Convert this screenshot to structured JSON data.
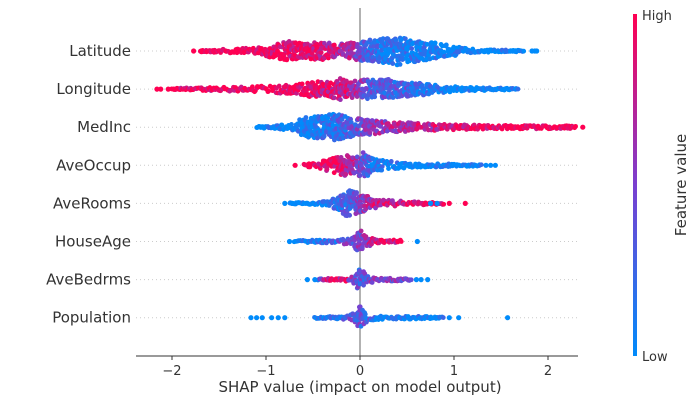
{
  "chart_data": {
    "type": "scatter",
    "subtype": "beeswarm",
    "title": "",
    "xlabel": "SHAP value (impact on model output)",
    "ylabel": "",
    "xlim": [
      -2.4,
      2.3
    ],
    "xticks": [
      -2,
      -1,
      0,
      1,
      2
    ],
    "xtick_labels": [
      "−2",
      "−1",
      "0",
      "1",
      "2"
    ],
    "grid": false,
    "colorbar": {
      "label": "Feature value",
      "high_label": "High",
      "low_label": "Low",
      "high_color": "#ff0052",
      "low_color": "#008bfb",
      "mid_color": "#7a3fd0"
    },
    "note": "profile knots are [shap value, relative density 0-1, mean feature value 0(low)-1(high)]; outliers are [shap value, feature value]",
    "features": [
      {
        "name": "Latitude",
        "profile": [
          [
            -1.7,
            0.06,
            1
          ],
          [
            -1.55,
            0.1,
            1
          ],
          [
            -1.2,
            0.2,
            1
          ],
          [
            -0.95,
            0.45,
            0.98
          ],
          [
            -0.75,
            0.7,
            0.95
          ],
          [
            -0.58,
            0.5,
            0.9
          ],
          [
            -0.4,
            0.7,
            0.85
          ],
          [
            -0.25,
            0.45,
            0.8
          ],
          [
            -0.1,
            0.6,
            0.7
          ],
          [
            0.05,
            0.75,
            0.3
          ],
          [
            0.2,
            0.85,
            0.15
          ],
          [
            0.4,
            1.0,
            0.08
          ],
          [
            0.55,
            0.8,
            0.08
          ],
          [
            0.8,
            0.6,
            0.05
          ],
          [
            1.0,
            0.35,
            0.03
          ],
          [
            1.2,
            0.14,
            0
          ],
          [
            1.5,
            0.08,
            0
          ],
          [
            1.75,
            0.05,
            0
          ]
        ],
        "outliers": [
          [
            -1.77,
            1
          ],
          [
            -1.69,
            1
          ],
          [
            1.83,
            0
          ],
          [
            1.86,
            0
          ],
          [
            1.88,
            0
          ]
        ]
      },
      {
        "name": "Longitude",
        "profile": [
          [
            -2.0,
            0.06,
            1
          ],
          [
            -1.6,
            0.12,
            1
          ],
          [
            -1.1,
            0.2,
            1
          ],
          [
            -0.7,
            0.35,
            0.95
          ],
          [
            -0.5,
            0.6,
            0.9
          ],
          [
            -0.35,
            0.5,
            0.85
          ],
          [
            -0.22,
            0.8,
            0.8
          ],
          [
            -0.05,
            0.6,
            0.7
          ],
          [
            0.1,
            0.7,
            0.35
          ],
          [
            0.3,
            0.7,
            0.3
          ],
          [
            0.45,
            0.55,
            0.3
          ],
          [
            0.6,
            0.5,
            0.2
          ],
          [
            0.8,
            0.3,
            0.05
          ],
          [
            1.1,
            0.15,
            0
          ],
          [
            1.4,
            0.1,
            0
          ],
          [
            1.68,
            0.05,
            0
          ]
        ],
        "outliers": [
          [
            -2.16,
            1
          ],
          [
            -2.12,
            1
          ],
          [
            -2.04,
            1
          ],
          [
            -1.98,
            1
          ]
        ]
      },
      {
        "name": "MedInc",
        "profile": [
          [
            -1.1,
            0.06,
            0
          ],
          [
            -0.9,
            0.1,
            0
          ],
          [
            -0.7,
            0.3,
            0.02
          ],
          [
            -0.6,
            0.7,
            0.05
          ],
          [
            -0.4,
            0.8,
            0.1
          ],
          [
            -0.25,
            1.0,
            0.2
          ],
          [
            -0.1,
            0.7,
            0.35
          ],
          [
            0.05,
            0.55,
            0.5
          ],
          [
            0.3,
            0.4,
            0.65
          ],
          [
            0.6,
            0.3,
            0.75
          ],
          [
            0.9,
            0.2,
            0.85
          ],
          [
            1.3,
            0.15,
            0.95
          ],
          [
            1.8,
            0.12,
            1
          ],
          [
            2.3,
            0.1,
            1
          ]
        ],
        "outliers": [
          [
            2.37,
            1
          ]
        ]
      },
      {
        "name": "AveOccup",
        "profile": [
          [
            -0.6,
            0.08,
            1
          ],
          [
            -0.45,
            0.2,
            1
          ],
          [
            -0.3,
            0.5,
            0.95
          ],
          [
            -0.17,
            0.75,
            0.85
          ],
          [
            -0.05,
            0.6,
            0.6
          ],
          [
            0.02,
            1.0,
            0.4
          ],
          [
            0.15,
            0.45,
            0.1
          ],
          [
            0.3,
            0.3,
            0.05
          ],
          [
            0.6,
            0.15,
            0
          ],
          [
            1.0,
            0.1,
            0
          ],
          [
            1.3,
            0.06,
            0
          ]
        ],
        "outliers": [
          [
            -0.69,
            1
          ],
          [
            1.34,
            0
          ],
          [
            1.39,
            0
          ],
          [
            1.44,
            0
          ]
        ]
      },
      {
        "name": "AveRooms",
        "profile": [
          [
            -0.75,
            0.06,
            0
          ],
          [
            -0.55,
            0.08,
            0
          ],
          [
            -0.35,
            0.15,
            0.05
          ],
          [
            -0.22,
            0.6,
            0.2
          ],
          [
            -0.12,
            1.0,
            0.35
          ],
          [
            0.0,
            0.7,
            0.5
          ],
          [
            0.15,
            0.35,
            0.75
          ],
          [
            0.35,
            0.2,
            0.85
          ],
          [
            0.6,
            0.12,
            0.9
          ],
          [
            0.9,
            0.08,
            0.9
          ]
        ],
        "outliers": [
          [
            -0.8,
            0
          ],
          [
            -0.72,
            0
          ],
          [
            0.75,
            0
          ],
          [
            0.82,
            0
          ],
          [
            0.95,
            1
          ],
          [
            1.12,
            1
          ]
        ]
      },
      {
        "name": "HouseAge",
        "profile": [
          [
            -0.7,
            0.06,
            0
          ],
          [
            -0.5,
            0.1,
            0.1
          ],
          [
            -0.25,
            0.1,
            0.25
          ],
          [
            -0.08,
            0.3,
            0.5
          ],
          [
            0.0,
            0.85,
            0.5
          ],
          [
            0.06,
            0.4,
            0.6
          ],
          [
            0.2,
            0.15,
            0.85
          ],
          [
            0.45,
            0.1,
            0.9
          ]
        ],
        "outliers": [
          [
            -0.75,
            0
          ],
          [
            0.61,
            0
          ]
        ]
      },
      {
        "name": "AveBedrms",
        "profile": [
          [
            -0.45,
            0.05,
            0.2
          ],
          [
            -0.35,
            0.12,
            0.9
          ],
          [
            -0.15,
            0.12,
            0.8
          ],
          [
            -0.06,
            0.3,
            0.4
          ],
          [
            0.0,
            0.85,
            0.3
          ],
          [
            0.07,
            0.3,
            0.4
          ],
          [
            0.2,
            0.12,
            0.55
          ],
          [
            0.45,
            0.1,
            0.5
          ],
          [
            0.55,
            0.05,
            0.5
          ]
        ],
        "outliers": [
          [
            -0.56,
            0
          ],
          [
            -0.48,
            0
          ],
          [
            0.6,
            0
          ],
          [
            0.65,
            0
          ],
          [
            0.72,
            0
          ]
        ]
      },
      {
        "name": "Population",
        "profile": [
          [
            -0.48,
            0.06,
            0
          ],
          [
            -0.3,
            0.1,
            0.1
          ],
          [
            -0.15,
            0.12,
            0.3
          ],
          [
            -0.05,
            0.35,
            0.4
          ],
          [
            0.0,
            0.85,
            0.35
          ],
          [
            0.06,
            0.35,
            0.3
          ],
          [
            0.2,
            0.12,
            0.1
          ],
          [
            0.6,
            0.1,
            0
          ],
          [
            0.9,
            0.06,
            0
          ]
        ],
        "outliers": [
          [
            -1.16,
            0
          ],
          [
            -1.1,
            0
          ],
          [
            -1.04,
            0
          ],
          [
            -0.94,
            0
          ],
          [
            -0.87,
            0
          ],
          [
            -0.8,
            0
          ],
          [
            0.95,
            0
          ],
          [
            1.05,
            0
          ],
          [
            1.57,
            0
          ]
        ]
      }
    ]
  }
}
